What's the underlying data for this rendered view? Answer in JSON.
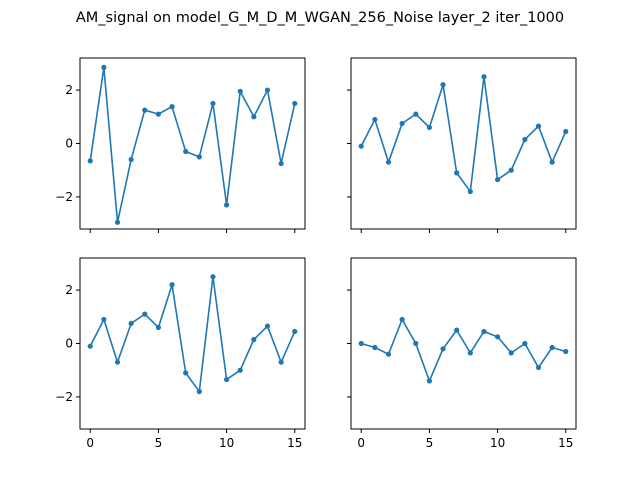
{
  "figure": {
    "title": "AM_signal on model_G_M_D_M_WGAN_256_Noise layer_2 iter_1000"
  },
  "colors": {
    "series": "#1f77b4",
    "axes": "#000000",
    "background": "#ffffff"
  },
  "chart_data": [
    {
      "type": "line",
      "panel": "top-left",
      "x": [
        0,
        1,
        2,
        3,
        4,
        5,
        6,
        7,
        8,
        9,
        10,
        11,
        12,
        13,
        14,
        15
      ],
      "values": [
        -0.65,
        2.85,
        -2.95,
        -0.6,
        1.25,
        1.1,
        1.38,
        -0.3,
        -0.5,
        1.5,
        -2.3,
        1.95,
        1.0,
        2.0,
        -0.75,
        1.5
      ],
      "xlim": [
        -0.75,
        15.75
      ],
      "ylim": [
        -3.2,
        3.2
      ],
      "xticks": [
        0,
        5,
        10,
        15
      ],
      "yticks": [
        -2,
        0,
        2
      ],
      "show_xticklabels": false,
      "show_yticklabels": true,
      "marker": "dot",
      "grid": false
    },
    {
      "type": "line",
      "panel": "top-right",
      "x": [
        0,
        1,
        2,
        3,
        4,
        5,
        6,
        7,
        8,
        9,
        10,
        11,
        12,
        13,
        14,
        15
      ],
      "values": [
        -0.1,
        0.9,
        -0.7,
        0.75,
        1.1,
        0.6,
        2.2,
        -1.1,
        -1.8,
        2.5,
        -1.35,
        -1.0,
        0.15,
        0.65,
        -0.7,
        0.45
      ],
      "xlim": [
        -0.75,
        15.75
      ],
      "ylim": [
        -3.2,
        3.2
      ],
      "xticks": [
        0,
        5,
        10,
        15
      ],
      "yticks": [
        -2,
        0,
        2
      ],
      "show_xticklabels": false,
      "show_yticklabels": false,
      "marker": "dot",
      "grid": false
    },
    {
      "type": "line",
      "panel": "bottom-left",
      "x": [
        0,
        1,
        2,
        3,
        4,
        5,
        6,
        7,
        8,
        9,
        10,
        11,
        12,
        13,
        14,
        15
      ],
      "values": [
        -0.1,
        0.9,
        -0.7,
        0.75,
        1.1,
        0.6,
        2.2,
        -1.1,
        -1.8,
        2.5,
        -1.35,
        -1.0,
        0.15,
        0.65,
        -0.7,
        0.45
      ],
      "xlim": [
        -0.75,
        15.75
      ],
      "ylim": [
        -3.2,
        3.2
      ],
      "xticks": [
        0,
        5,
        10,
        15
      ],
      "yticks": [
        -2,
        0,
        2
      ],
      "show_xticklabels": true,
      "show_yticklabels": true,
      "marker": "dot",
      "grid": false
    },
    {
      "type": "line",
      "panel": "bottom-right",
      "x": [
        0,
        1,
        2,
        3,
        4,
        5,
        6,
        7,
        8,
        9,
        10,
        11,
        12,
        13,
        14,
        15
      ],
      "values": [
        0.0,
        -0.15,
        -0.4,
        0.9,
        0.0,
        -1.4,
        -0.2,
        0.5,
        -0.35,
        0.45,
        0.25,
        -0.35,
        0.0,
        -0.9,
        -0.15,
        -0.3
      ],
      "xlim": [
        -0.75,
        15.75
      ],
      "ylim": [
        -3.2,
        3.2
      ],
      "xticks": [
        0,
        5,
        10,
        15
      ],
      "yticks": [
        -2,
        0,
        2
      ],
      "show_xticklabels": true,
      "show_yticklabels": false,
      "marker": "dot",
      "grid": false
    }
  ]
}
